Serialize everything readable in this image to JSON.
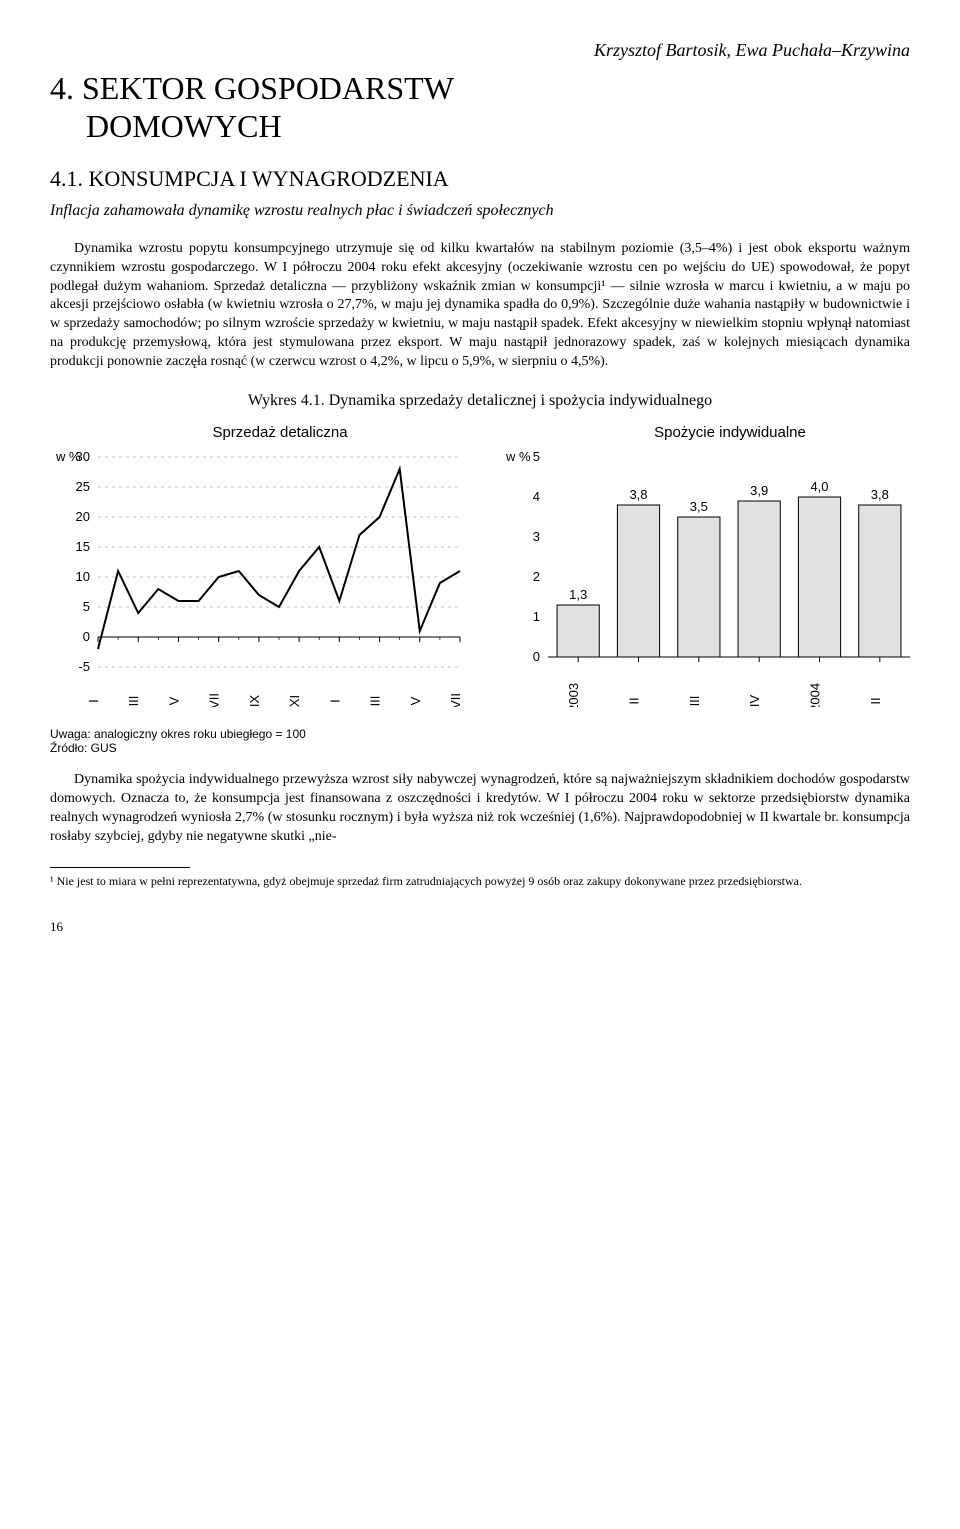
{
  "author": "Krzysztof Bartosik, Ewa Puchała–Krzywina",
  "chapter_title_line1": "4. SEKTOR GOSPODARSTW",
  "chapter_title_line2": "DOMOWYCH",
  "section_title": "4.1. KONSUMPCJA I WYNAGRODZENIA",
  "subtitle": "Inflacja zahamowała dynamikę wzrostu realnych płac i świadczeń społecznych",
  "para1": "Dynamika wzrostu popytu konsumpcyjnego utrzymuje się od kilku kwartałów na stabilnym poziomie (3,5–4%) i jest obok eksportu ważnym czynnikiem wzrostu gospodarczego. W I półroczu 2004 roku efekt akcesyjny (oczekiwanie wzrostu cen po wejściu do UE) spowodował, że popyt podlegał dużym wahaniom. Sprzedaż detaliczna — przybliżony wskaźnik zmian w konsumpcji¹ — silnie wzrosła w marcu i kwietniu, a w maju po akcesji przejściowo osłabła (w kwietniu wzrosła o 27,7%, w maju jej dynamika spadła do 0,9%). Szczególnie duże wahania nastąpiły w budownictwie i w sprzedaży samochodów; po silnym wzroście sprzedaży w kwietniu, w maju nastąpił spadek. Efekt akcesyjny w niewielkim stopniu wpłynął natomiast na produkcję przemysłową, która jest stymulowana przez eksport. W maju nastąpił jednorazowy spadek, zaś w kolejnych miesiącach dynamika produkcji ponownie zaczęła rosnąć (w czerwcu wzrost o 4,2%, w lipcu o 5,9%, w sierpniu o 4,5%).",
  "chart_title": "Wykres 4.1. Dynamika sprzedaży detalicznej i spożycia indywidualnego",
  "line_chart": {
    "type": "line",
    "title": "Sprzedaż detaliczna",
    "y_label": "w %",
    "ylim": [
      -5,
      30
    ],
    "ytick_step": 5,
    "x_labels": [
      "I",
      "III",
      "V",
      "VII",
      "IX",
      "XI",
      "I",
      "III",
      "V",
      "VII"
    ],
    "values": [
      -2,
      11,
      4,
      8,
      6,
      6,
      10,
      11,
      7,
      5,
      11,
      15,
      6,
      17,
      20,
      28,
      1,
      9,
      11
    ],
    "line_color": "#000000",
    "line_width": 2,
    "grid_color": "#888888",
    "background_color": "#ffffff",
    "axis_fontsize": 13,
    "label_font": "Arial"
  },
  "bar_chart": {
    "type": "bar",
    "title": "Spożycie indywidualne",
    "y_label": "w %",
    "ylim": [
      0,
      5
    ],
    "ytick_step": 1,
    "categories": [
      "I 2003",
      "II",
      "III",
      "IV",
      "I 2004",
      "II"
    ],
    "values": [
      1.3,
      3.8,
      3.5,
      3.9,
      4.0,
      3.8
    ],
    "bar_color": "#e0e0e0",
    "bar_border": "#000000",
    "background_color": "#ffffff",
    "axis_fontsize": 13,
    "label_font": "Arial",
    "bar_width": 0.7
  },
  "footnote_meta1": "Uwaga: analogiczny okres roku ubiegłego = 100",
  "footnote_meta2": "Źródło: GUS",
  "para2": "Dynamika spożycia indywidualnego przewyższa wzrost siły nabywczej wynagrodzeń, które są najważniejszym składnikiem dochodów gospodarstw domowych. Oznacza to, że konsumpcja jest finansowana z oszczędności i kredytów. W I półroczu 2004 roku w sektorze przedsiębiorstw dynamika realnych wynagrodzeń wyniosła 2,7% (w stosunku rocznym) i była wyższa niż rok wcześniej (1,6%). Najprawdopodobniej w II kwartale br. konsumpcja rosłaby szybciej, gdyby nie negatywne skutki „nie-",
  "footnote1": "¹ Nie jest to miara w pełni reprezentatywna, gdyż obejmuje sprzedaż firm zatrudniających powyżej 9 osób oraz zakupy dokonywane przez przedsiębiorstwa.",
  "pagenum": "16"
}
